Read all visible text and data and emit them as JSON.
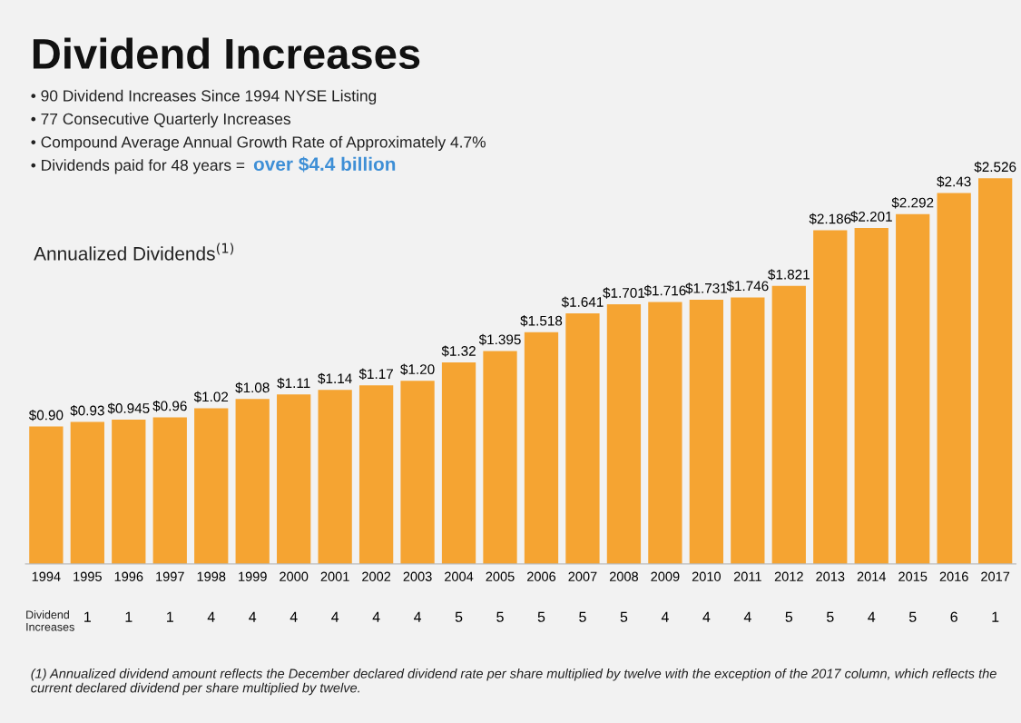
{
  "chart_data": {
    "type": "bar",
    "title": "Dividend Increases",
    "subtitle": "Annualized Dividends$^{(1)}$",
    "categories": [
      "1994",
      "1995",
      "1996",
      "1997",
      "1998",
      "1999",
      "2000",
      "2001",
      "2002",
      "2003",
      "2004",
      "2005",
      "2006",
      "2007",
      "2008",
      "2009",
      "2010",
      "2011",
      "2012",
      "2013",
      "2014",
      "2015",
      "2016",
      "2017"
    ],
    "values": [
      0.9,
      0.93,
      0.945,
      0.96,
      1.02,
      1.08,
      1.11,
      1.14,
      1.17,
      1.2,
      1.32,
      1.395,
      1.518,
      1.641,
      1.701,
      1.716,
      1.731,
      1.746,
      1.821,
      2.186,
      2.201,
      2.292,
      2.43,
      2.526
    ],
    "value_labels": [
      "$0.90",
      "$0.93",
      "$0.945",
      "$0.96",
      "$1.02",
      "$1.08",
      "$1.11",
      "$1.14",
      "$1.17",
      "$1.20",
      "$1.32",
      "$1.395",
      "$1.518",
      "$1.641",
      "$1.701",
      "$1.716",
      "$1.731",
      "$1.746",
      "$1.821",
      "$2.186",
      "$2.201",
      "$2.292",
      "$2.43",
      "$2.526"
    ],
    "color": "#f5a432",
    "annotations": [
      "• 90 Dividend Increases Since 1994 NYSE Listing",
      "• 77 Consecutive Quarterly Increases",
      "• Compound Average Annual Growth Rate of Approximately 4.7%",
      "• Dividends paid for 48 years = ",
      "over $4.4 billion",
      "Dividend\nIncreases",
      "1",
      "1",
      "1",
      "4",
      "4",
      "4",
      "4",
      "4",
      "4",
      "5",
      "5",
      "5",
      "5",
      "5",
      "4",
      "4",
      "4",
      "5",
      "5",
      "4",
      "5",
      "6",
      "1",
      "(1) Annualized dividend amount reflects the December declared dividend rate per share multiplied by twelve with the exception of the 2017 column, which reflects the current declared dividend per share multiplied by twelve."
    ]
  }
}
